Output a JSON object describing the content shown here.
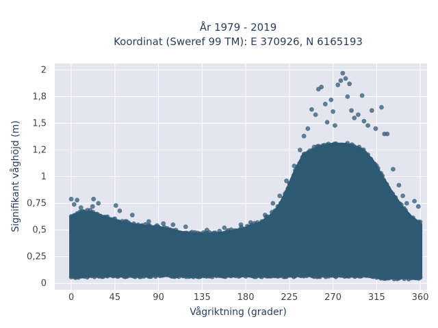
{
  "chart_data": {
    "type": "scatter",
    "title": "År 1979 - 2019",
    "subtitle": "Koordinat (Sweref 99 TM): E 370926, N 6165193",
    "xlabel": "Vågriktning (grader)",
    "ylabel": "Signifikant våghöjd (m)",
    "xlim": [
      -17,
      367
    ],
    "ylim": [
      -0.06,
      2.06
    ],
    "xticks": [
      0,
      45,
      90,
      135,
      180,
      225,
      270,
      315,
      360
    ],
    "xtick_labels": [
      "0",
      "45",
      "90",
      "135",
      "180",
      "225",
      "270",
      "315",
      "360"
    ],
    "yticks": [
      0,
      0.25,
      0.5,
      0.75,
      1,
      1.25,
      1.5,
      1.75,
      2
    ],
    "ytick_labels": [
      "0",
      "0,25",
      "0,5",
      "0,75",
      "1",
      "1,2",
      "1,5",
      "1,8",
      "2"
    ],
    "grid": true,
    "marker_color": "#2f5a73",
    "background_color": "#e5e5ef",
    "envelope": {
      "x": [
        0,
        10,
        20,
        30,
        45,
        60,
        75,
        90,
        105,
        120,
        135,
        150,
        165,
        180,
        195,
        205,
        215,
        222,
        230,
        240,
        250,
        260,
        270,
        280,
        290,
        300,
        310,
        320,
        330,
        340,
        350,
        360
      ],
      "upper": [
        0.62,
        0.66,
        0.66,
        0.63,
        0.58,
        0.55,
        0.53,
        0.52,
        0.49,
        0.46,
        0.45,
        0.46,
        0.48,
        0.51,
        0.56,
        0.62,
        0.72,
        0.85,
        1.02,
        1.2,
        1.25,
        1.28,
        1.3,
        1.3,
        1.28,
        1.25,
        1.15,
        1.0,
        0.85,
        0.72,
        0.62,
        0.55
      ],
      "lower": [
        0.07,
        0.07,
        0.08,
        0.08,
        0.08,
        0.08,
        0.08,
        0.08,
        0.08,
        0.08,
        0.08,
        0.08,
        0.08,
        0.08,
        0.08,
        0.08,
        0.08,
        0.08,
        0.08,
        0.08,
        0.08,
        0.08,
        0.08,
        0.08,
        0.08,
        0.08,
        0.08,
        0.06,
        0.06,
        0.06,
        0.06,
        0.06
      ]
    },
    "points": [
      {
        "x": 0,
        "y": 0.79
      },
      {
        "x": 6,
        "y": 0.78
      },
      {
        "x": 3,
        "y": 0.74
      },
      {
        "x": 10,
        "y": 0.71
      },
      {
        "x": 22,
        "y": 0.72
      },
      {
        "x": 28,
        "y": 0.75
      },
      {
        "x": 23,
        "y": 0.79
      },
      {
        "x": 46,
        "y": 0.73
      },
      {
        "x": 50,
        "y": 0.68
      },
      {
        "x": 63,
        "y": 0.64
      },
      {
        "x": 80,
        "y": 0.58
      },
      {
        "x": 95,
        "y": 0.56
      },
      {
        "x": 105,
        "y": 0.55
      },
      {
        "x": 118,
        "y": 0.53
      },
      {
        "x": 140,
        "y": 0.5
      },
      {
        "x": 158,
        "y": 0.52
      },
      {
        "x": 175,
        "y": 0.55
      },
      {
        "x": 185,
        "y": 0.57
      },
      {
        "x": 200,
        "y": 0.64
      },
      {
        "x": 208,
        "y": 0.75
      },
      {
        "x": 215,
        "y": 0.82
      },
      {
        "x": 222,
        "y": 0.96
      },
      {
        "x": 230,
        "y": 1.1
      },
      {
        "x": 236,
        "y": 1.25
      },
      {
        "x": 240,
        "y": 1.38
      },
      {
        "x": 244,
        "y": 1.45
      },
      {
        "x": 248,
        "y": 1.63
      },
      {
        "x": 252,
        "y": 1.58
      },
      {
        "x": 255,
        "y": 1.82
      },
      {
        "x": 258,
        "y": 1.84
      },
      {
        "x": 262,
        "y": 1.68
      },
      {
        "x": 264,
        "y": 1.51
      },
      {
        "x": 268,
        "y": 1.72
      },
      {
        "x": 270,
        "y": 1.61
      },
      {
        "x": 272,
        "y": 1.48
      },
      {
        "x": 275,
        "y": 1.86
      },
      {
        "x": 278,
        "y": 1.9
      },
      {
        "x": 280,
        "y": 1.97
      },
      {
        "x": 283,
        "y": 1.92
      },
      {
        "x": 285,
        "y": 1.75
      },
      {
        "x": 287,
        "y": 1.87
      },
      {
        "x": 289,
        "y": 1.62
      },
      {
        "x": 292,
        "y": 1.55
      },
      {
        "x": 296,
        "y": 1.58
      },
      {
        "x": 300,
        "y": 1.76
      },
      {
        "x": 302,
        "y": 1.52
      },
      {
        "x": 306,
        "y": 1.48
      },
      {
        "x": 310,
        "y": 1.62
      },
      {
        "x": 314,
        "y": 1.45
      },
      {
        "x": 320,
        "y": 1.65
      },
      {
        "x": 323,
        "y": 1.4
      },
      {
        "x": 326,
        "y": 1.4
      },
      {
        "x": 332,
        "y": 1.07
      },
      {
        "x": 338,
        "y": 0.92
      },
      {
        "x": 342,
        "y": 0.82
      },
      {
        "x": 346,
        "y": 0.75
      },
      {
        "x": 354,
        "y": 0.77
      },
      {
        "x": 358,
        "y": 0.72
      }
    ]
  }
}
